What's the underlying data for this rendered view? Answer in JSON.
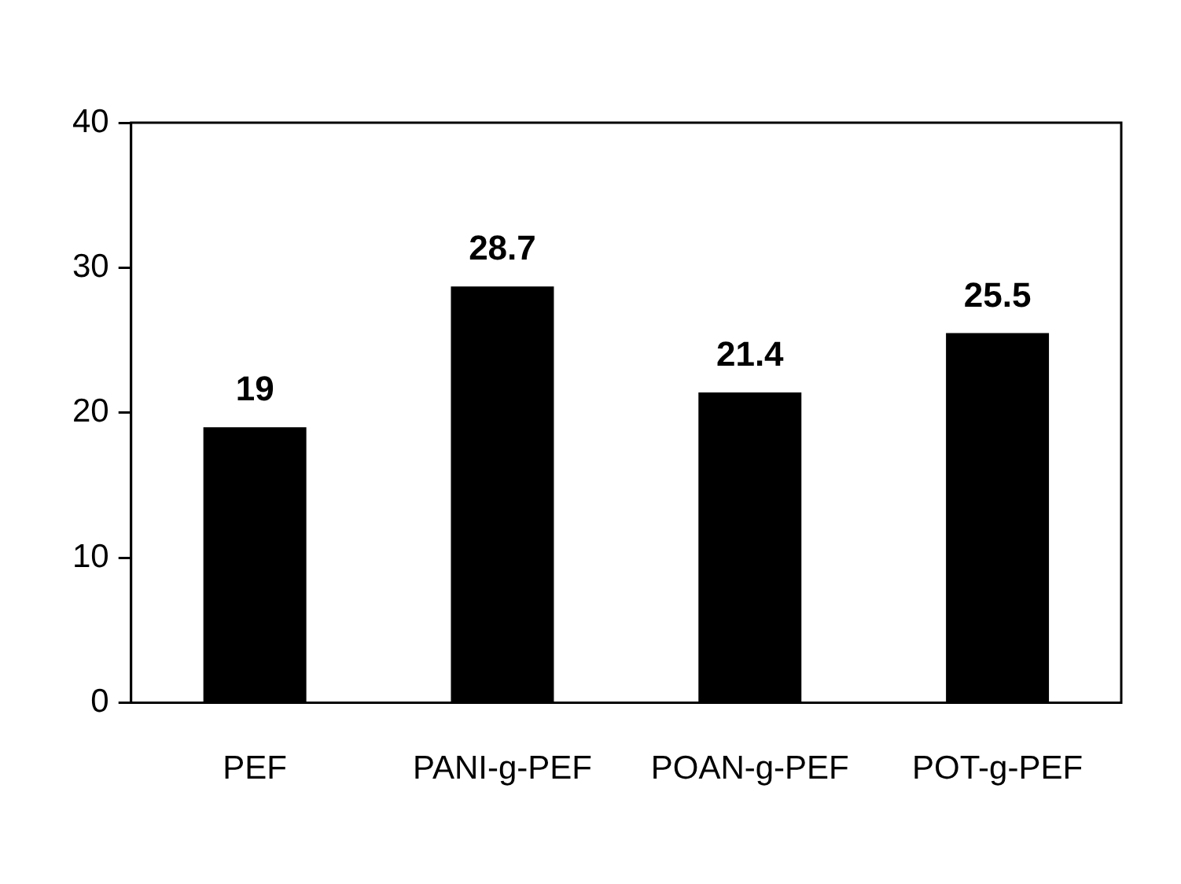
{
  "chart_data": {
    "type": "bar",
    "categories": [
      "PEF",
      "PANI-g-PEF",
      "POAN-g-PEF",
      "POT-g-PEF"
    ],
    "values": [
      19,
      28.7,
      21.4,
      25.5
    ],
    "color": "#000000",
    "ylim": [
      0,
      40
    ],
    "yticks": [
      0,
      10,
      20,
      30,
      40
    ],
    "grid": false,
    "legend": false,
    "data_labels": true
  }
}
